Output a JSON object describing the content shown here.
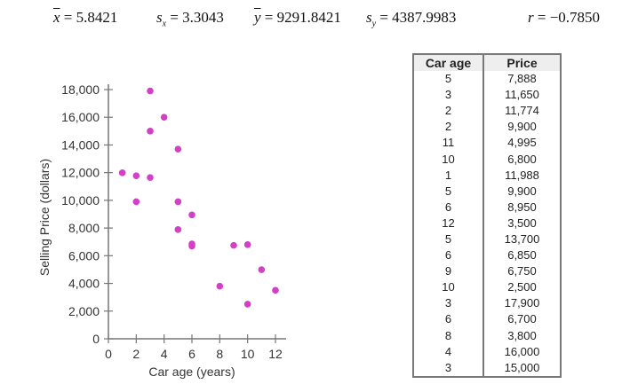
{
  "stats": {
    "xbar": {
      "symbol": "x",
      "value": "= 5.8421"
    },
    "sx": {
      "symbol": "s",
      "sub": "x",
      "value": "= 3.3043"
    },
    "ybar": {
      "symbol": "y",
      "value": "= 9291.8421"
    },
    "sy": {
      "symbol": "s",
      "sub": "y",
      "value": "= 4387.9983"
    },
    "r": {
      "symbol": "r",
      "value": "= −0.7850"
    }
  },
  "chart_data": {
    "type": "scatter",
    "xlabel": "Car age (years)",
    "ylabel": "Selling Price (dollars)",
    "xlim": [
      0,
      12
    ],
    "ylim": [
      0,
      18000
    ],
    "xticks": [
      "0",
      "2",
      "4",
      "6",
      "8",
      "10",
      "12"
    ],
    "yticks": [
      "0",
      "2,000",
      "4,000",
      "6,000",
      "8,000",
      "10,000",
      "12,000",
      "14,000",
      "16,000",
      "18,000"
    ],
    "grid": false,
    "point_color": "#d43fc8",
    "x": [
      5,
      3,
      2,
      2,
      11,
      10,
      1,
      5,
      6,
      12,
      5,
      6,
      9,
      10,
      3,
      6,
      8,
      4,
      3
    ],
    "y": [
      7888,
      11650,
      11774,
      9900,
      4995,
      6800,
      11988,
      9900,
      8950,
      3500,
      13700,
      6850,
      6750,
      2500,
      17900,
      6700,
      3800,
      16000,
      15000
    ]
  },
  "table": {
    "headers": [
      "Car age",
      "Price"
    ],
    "rows": [
      [
        "5",
        "7,888"
      ],
      [
        "3",
        "11,650"
      ],
      [
        "2",
        "11,774"
      ],
      [
        "2",
        "9,900"
      ],
      [
        "11",
        "4,995"
      ],
      [
        "10",
        "6,800"
      ],
      [
        "1",
        "11,988"
      ],
      [
        "5",
        "9,900"
      ],
      [
        "6",
        "8,950"
      ],
      [
        "12",
        "3,500"
      ],
      [
        "5",
        "13,700"
      ],
      [
        "6",
        "6,850"
      ],
      [
        "9",
        "6,750"
      ],
      [
        "10",
        "2,500"
      ],
      [
        "3",
        "17,900"
      ],
      [
        "6",
        "6,700"
      ],
      [
        "8",
        "3,800"
      ],
      [
        "4",
        "16,000"
      ],
      [
        "3",
        "15,000"
      ]
    ]
  }
}
